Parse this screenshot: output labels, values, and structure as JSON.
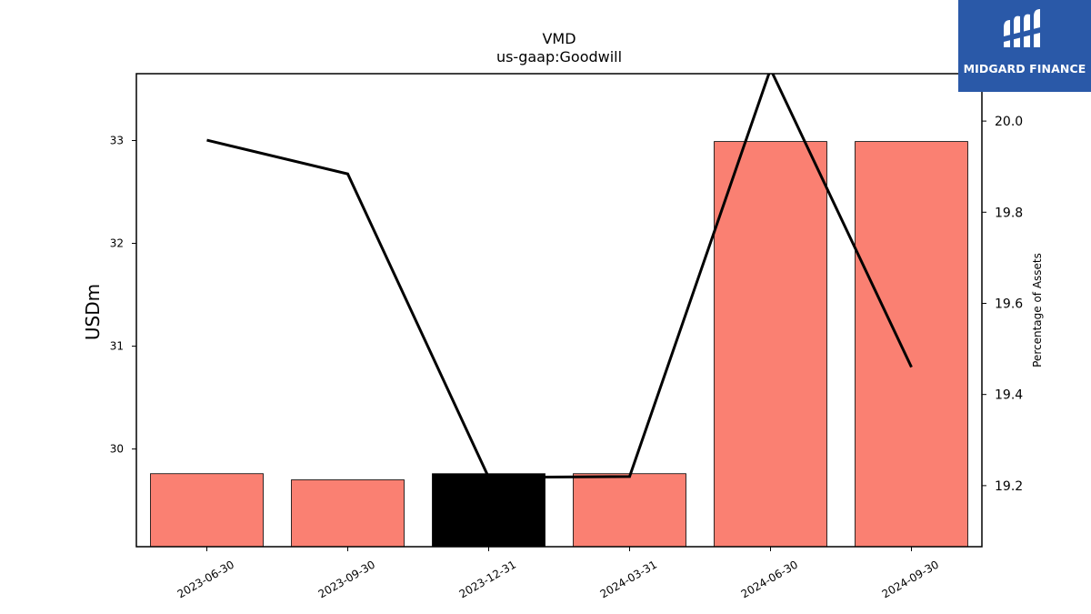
{
  "brand": {
    "name": "MIDGARD FINANCE",
    "bg_color": "#2a59a8"
  },
  "chart_data": {
    "type": "bar",
    "title": "VMD",
    "subtitle": "us-gaap:Goodwill",
    "ylabel": "USDm",
    "y2label": "Percentage of Assets",
    "categories": [
      "2023-06-30",
      "2023-09-30",
      "2023-12-31",
      "2024-03-31",
      "2024-06-30",
      "2024-09-30"
    ],
    "series": [
      {
        "type": "bar",
        "axis": "left",
        "values": [
          29.76,
          29.7,
          29.76,
          29.76,
          32.99,
          32.99
        ],
        "colors": [
          "#fa8072",
          "#fa8072",
          "#000000",
          "#fa8072",
          "#fa8072",
          "#fa8072"
        ]
      },
      {
        "type": "line",
        "axis": "right",
        "values": [
          19.958,
          19.884,
          19.218,
          19.22,
          20.114,
          19.46
        ],
        "color": "#000000"
      }
    ],
    "ylim": [
      29.05,
      33.65
    ],
    "y2lim": [
      19.066,
      20.104
    ],
    "yticks": [
      30,
      31,
      32,
      33
    ],
    "y2ticks": [
      "19.2",
      "19.4",
      "19.6",
      "19.8",
      "20.0"
    ],
    "grid": false,
    "legend": "none"
  }
}
